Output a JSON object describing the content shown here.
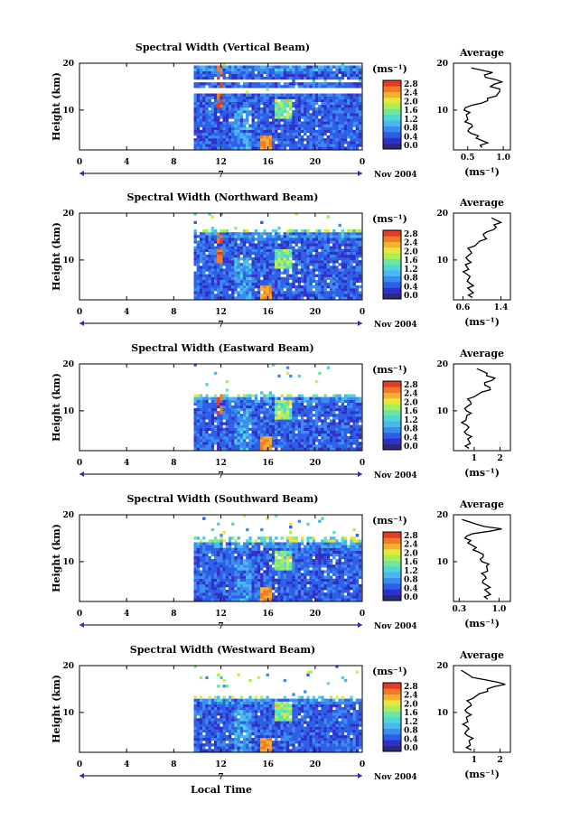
{
  "figure": {
    "xlabel": "Local Time",
    "date_label": "Nov 2004",
    "day_label": "7",
    "height_label": "Height (km)",
    "unit_label": "(ms⁻¹)",
    "avg_title": "Average"
  },
  "colors": {
    "colormap": [
      "#2a2a7a",
      "#3030c8",
      "#2d5fe6",
      "#3b8cf0",
      "#4ab8f0",
      "#4fd6d6",
      "#6ee6a0",
      "#a8ee5a",
      "#e6e63c",
      "#f5b030",
      "#f07a28",
      "#e03c28"
    ]
  },
  "chart_data": [
    {
      "type": "heatmap",
      "title": "Spectral Width (Vertical Beam)",
      "xlabel": "Local Time",
      "ylabel": "Height (km)",
      "xlim": [
        0,
        24
      ],
      "ylim": [
        1.5,
        20
      ],
      "xticks": [
        "0",
        "4",
        "8",
        "12",
        "16",
        "20",
        "0"
      ],
      "yticks": [
        "10",
        "20"
      ],
      "data_start_hour": 9.7,
      "data_top_km": 19.5,
      "gap_km": [
        [
          13.0,
          14.3
        ],
        [
          15.7,
          16.2
        ]
      ],
      "colorbar": {
        "label": "(ms⁻¹)",
        "ticks": [
          "0.0",
          "0.4",
          "0.8",
          "1.2",
          "1.6",
          "2.0",
          "2.4",
          "2.8"
        ]
      },
      "profile": {
        "title": "Average",
        "xlabel": "(ms⁻¹)",
        "xticks": [
          "0.5",
          "1.0"
        ],
        "xlim": [
          0.3,
          1.1
        ],
        "heights": [
          2,
          3,
          4,
          5,
          6,
          7,
          8,
          9,
          10,
          11,
          12,
          13,
          14,
          15,
          16,
          17,
          18,
          19
        ],
        "values": [
          0.7,
          0.78,
          0.62,
          0.55,
          0.52,
          0.55,
          0.5,
          0.48,
          0.45,
          0.55,
          0.78,
          0.9,
          0.95,
          0.82,
          0.98,
          0.75,
          0.85,
          0.55
        ]
      }
    },
    {
      "type": "heatmap",
      "title": "Spectral Width (Northward Beam)",
      "xlabel": "Local Time",
      "ylabel": "Height (km)",
      "xlim": [
        0,
        24
      ],
      "ylim": [
        1.5,
        20
      ],
      "xticks": [
        "0",
        "4",
        "8",
        "12",
        "16",
        "20",
        "0"
      ],
      "yticks": [
        "10",
        "20"
      ],
      "data_start_hour": 9.7,
      "data_top_km": 15.5,
      "gap_km": [],
      "colorbar": {
        "label": "(ms⁻¹)",
        "ticks": [
          "0.0",
          "0.4",
          "0.8",
          "1.2",
          "1.6",
          "2.0",
          "2.4",
          "2.8"
        ]
      },
      "profile": {
        "title": "Average",
        "xlabel": "(ms⁻¹)",
        "xticks": [
          "0.6",
          "1.4"
        ],
        "xlim": [
          0.4,
          1.6
        ],
        "heights": [
          2,
          3,
          4,
          5,
          6,
          7,
          8,
          9,
          10,
          11,
          12,
          13,
          14,
          15,
          16,
          17,
          18,
          19
        ],
        "values": [
          0.8,
          0.82,
          0.7,
          0.75,
          0.72,
          0.68,
          0.72,
          0.65,
          0.7,
          0.72,
          0.75,
          0.85,
          0.95,
          1.05,
          1.1,
          1.3,
          1.4,
          1.2
        ]
      }
    },
    {
      "type": "heatmap",
      "title": "Spectral Width (Eastward Beam)",
      "xlabel": "Local Time",
      "ylabel": "Height (km)",
      "xlim": [
        0,
        24
      ],
      "ylim": [
        1.5,
        20
      ],
      "xticks": [
        "0",
        "4",
        "8",
        "12",
        "16",
        "20",
        "0"
      ],
      "yticks": [
        "10",
        "20"
      ],
      "data_start_hour": 9.7,
      "data_top_km": 12.5,
      "gap_km": [],
      "colorbar": {
        "label": "(ms⁻¹)",
        "ticks": [
          "0.0",
          "0.4",
          "0.8",
          "1.2",
          "1.6",
          "2.0",
          "2.4",
          "2.8"
        ]
      },
      "profile": {
        "title": "Average",
        "xlabel": "(ms⁻¹)",
        "xticks": [
          "1",
          "2"
        ],
        "xlim": [
          0.2,
          2.4
        ],
        "heights": [
          2,
          3,
          4,
          5,
          6,
          7,
          8,
          9,
          10,
          11,
          12,
          13,
          14,
          15,
          16,
          17,
          18,
          19
        ],
        "values": [
          0.8,
          0.85,
          0.75,
          0.7,
          0.72,
          0.7,
          0.68,
          0.72,
          0.7,
          0.75,
          0.85,
          1.0,
          1.3,
          1.6,
          1.4,
          1.8,
          1.5,
          1.1
        ]
      }
    },
    {
      "type": "heatmap",
      "title": "Spectral Width (Southward Beam)",
      "xlabel": "Local Time",
      "ylabel": "Height (km)",
      "xlim": [
        0,
        24
      ],
      "ylim": [
        1.5,
        20
      ],
      "xticks": [
        "0",
        "4",
        "8",
        "12",
        "16",
        "20",
        "0"
      ],
      "yticks": [
        "10",
        "20"
      ],
      "data_start_hour": 9.7,
      "data_top_km": 14.0,
      "gap_km": [],
      "colorbar": {
        "label": "(ms⁻¹)",
        "ticks": [
          "0.0",
          "0.4",
          "0.8",
          "1.2",
          "1.6",
          "2.0",
          "2.4",
          "2.8"
        ]
      },
      "profile": {
        "title": "Average",
        "xlabel": "(ms⁻¹)",
        "xticks": [
          "0.3",
          "1.0"
        ],
        "xlim": [
          0.2,
          1.2
        ],
        "heights": [
          2,
          3,
          4,
          5,
          6,
          7,
          8,
          9,
          10,
          11,
          12,
          13,
          14,
          15,
          16,
          17,
          18,
          19
        ],
        "values": [
          0.8,
          0.85,
          0.75,
          0.78,
          0.72,
          0.75,
          0.8,
          0.78,
          0.7,
          0.72,
          0.65,
          0.6,
          0.45,
          0.4,
          0.55,
          1.05,
          0.6,
          0.35
        ]
      }
    },
    {
      "type": "heatmap",
      "title": "Spectral Width (Westward Beam)",
      "xlabel": "Local Time",
      "ylabel": "Height (km)",
      "xlim": [
        0,
        24
      ],
      "ylim": [
        1.5,
        20
      ],
      "xticks": [
        "0",
        "4",
        "8",
        "12",
        "16",
        "20",
        "0"
      ],
      "yticks": [
        "10",
        "20"
      ],
      "data_start_hour": 9.7,
      "data_top_km": 12.5,
      "gap_km": [],
      "colorbar": {
        "label": "(ms⁻¹)",
        "ticks": [
          "0.0",
          "0.4",
          "0.8",
          "1.2",
          "1.6",
          "2.0",
          "2.4",
          "2.8"
        ]
      },
      "profile": {
        "title": "Average",
        "xlabel": "(ms⁻¹)",
        "xticks": [
          "1",
          "2"
        ],
        "xlim": [
          0.2,
          2.4
        ],
        "heights": [
          2,
          3,
          4,
          5,
          6,
          7,
          8,
          9,
          10,
          11,
          12,
          13,
          14,
          15,
          16,
          17,
          18,
          19
        ],
        "values": [
          0.9,
          0.85,
          0.8,
          0.75,
          0.7,
          0.72,
          0.75,
          0.7,
          0.72,
          0.75,
          0.85,
          0.95,
          1.2,
          1.5,
          2.2,
          1.4,
          0.8,
          0.5
        ]
      }
    }
  ]
}
